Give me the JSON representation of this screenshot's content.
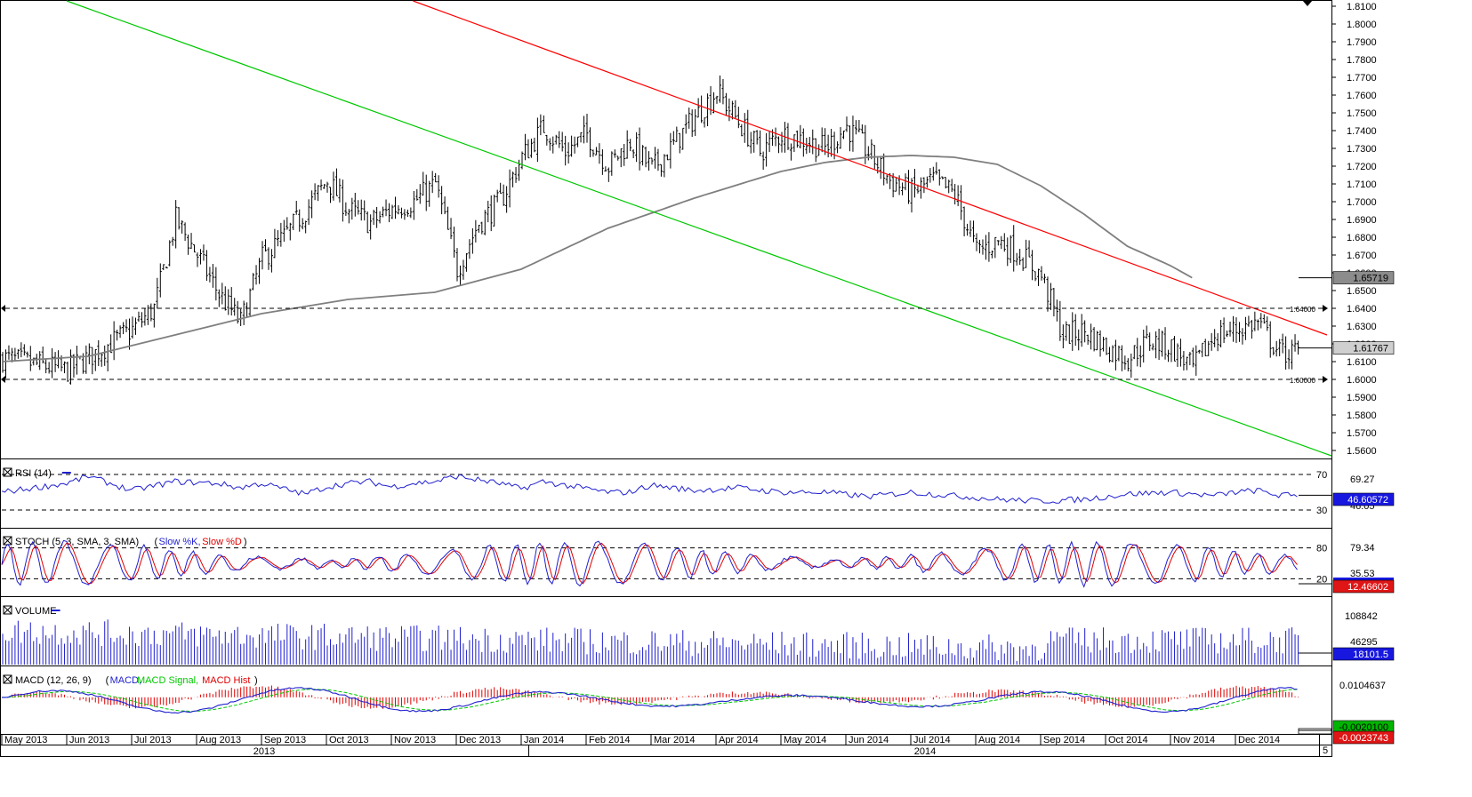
{
  "colors": {
    "price_bar": "#000000",
    "moving_average": "#7f7f7f",
    "resistance_line": "#ff0000",
    "support_line": "#00c800",
    "rsi": "#1f1fcf",
    "stoch_k": "#1f1fcf",
    "stoch_d": "#e00000",
    "volume": "#1f1fcf",
    "macd": "#1f1fcf",
    "macd_signal": "#00c800",
    "macd_hist": "#e00000",
    "flag_blue": "#1717e0",
    "flag_red": "#e01515",
    "flag_green": "#00b400",
    "flag_gray": "#cfcfcf"
  },
  "chart_data": [
    {
      "type": "ohlc",
      "panel": "price",
      "ylim": [
        1.556,
        1.813
      ],
      "y_ticks": [
        "1.8100",
        "1.8000",
        "1.7900",
        "1.7800",
        "1.7700",
        "1.7600",
        "1.7500",
        "1.7400",
        "1.7300",
        "1.7200",
        "1.7100",
        "1.7000",
        "1.6900",
        "1.6800",
        "1.6700",
        "1.6600",
        "1.6500",
        "1.6400",
        "1.6300",
        "1.6200",
        "1.6100",
        "1.6000",
        "1.5900",
        "1.5800",
        "1.5700",
        "1.5600"
      ],
      "months": [
        "May 2013",
        "Jun 2013",
        "Jul 2013",
        "Aug 2013",
        "Sep 2013",
        "Oct 2013",
        "Nov 2013",
        "Dec 2013",
        "Jan 2014",
        "Feb 2014",
        "Mar 2014",
        "Apr 2014",
        "May 2014",
        "Jun 2014",
        "Jul 2014",
        "Aug 2014",
        "Sep 2014",
        "Oct 2014",
        "Nov 2014",
        "Dec 2014"
      ],
      "years": [
        "2013",
        "2014"
      ],
      "last_marker": "5",
      "close_anchors": [
        [
          0,
          1.612
        ],
        [
          3,
          1.605
        ],
        [
          6,
          1.628
        ],
        [
          7,
          1.64
        ],
        [
          8,
          1.69
        ],
        [
          9,
          1.67
        ],
        [
          10,
          1.648
        ],
        [
          11,
          1.632
        ],
        [
          12,
          1.668
        ],
        [
          13,
          1.68
        ],
        [
          14,
          1.695
        ],
        [
          15,
          1.712
        ],
        [
          16,
          1.695
        ],
        [
          17,
          1.688
        ],
        [
          18,
          1.696
        ],
        [
          19,
          1.7
        ],
        [
          20,
          1.71
        ],
        [
          21,
          1.662
        ],
        [
          22,
          1.688
        ],
        [
          23,
          1.7
        ],
        [
          24,
          1.725
        ],
        [
          25,
          1.742
        ],
        [
          26,
          1.728
        ],
        [
          27,
          1.738
        ],
        [
          28,
          1.72
        ],
        [
          29,
          1.734
        ],
        [
          30,
          1.718
        ],
        [
          31,
          1.732
        ],
        [
          32,
          1.748
        ],
        [
          33,
          1.762
        ],
        [
          34,
          1.745
        ],
        [
          35,
          1.728
        ],
        [
          36,
          1.738
        ],
        [
          37,
          1.735
        ],
        [
          38,
          1.73
        ],
        [
          39,
          1.742
        ],
        [
          40,
          1.728
        ],
        [
          41,
          1.712
        ],
        [
          42,
          1.705
        ],
        [
          43,
          1.712
        ],
        [
          44,
          1.704
        ],
        [
          45,
          1.672
        ],
        [
          46,
          1.678
        ],
        [
          47,
          1.671
        ],
        [
          48,
          1.658
        ],
        [
          49,
          1.625
        ],
        [
          50,
          1.627
        ],
        [
          51,
          1.618
        ],
        [
          52,
          1.612
        ],
        [
          53,
          1.622
        ],
        [
          54,
          1.618
        ],
        [
          55,
          1.606
        ],
        [
          56,
          1.625
        ],
        [
          57,
          1.628
        ],
        [
          58,
          1.632
        ],
        [
          59,
          1.615
        ]
      ],
      "moving_average_anchors": [
        [
          0,
          1.61
        ],
        [
          4,
          1.613
        ],
        [
          8,
          1.625
        ],
        [
          12,
          1.637
        ],
        [
          16,
          1.645
        ],
        [
          20,
          1.649
        ],
        [
          24,
          1.662
        ],
        [
          28,
          1.685
        ],
        [
          32,
          1.702
        ],
        [
          36,
          1.717
        ],
        [
          38,
          1.722
        ],
        [
          40,
          1.725
        ],
        [
          42,
          1.726
        ],
        [
          44,
          1.725
        ],
        [
          46,
          1.721
        ],
        [
          48,
          1.709
        ],
        [
          50,
          1.693
        ],
        [
          52,
          1.675
        ],
        [
          54,
          1.664
        ],
        [
          55,
          1.6572
        ]
      ],
      "moving_average_last": "1.65719",
      "last_price": "1.61767",
      "resistance_line": {
        "from": [
          19,
          1.813
        ],
        "to": [
          60,
          1.629
        ]
      },
      "support_line": {
        "from": [
          3,
          1.813
        ],
        "to": [
          60,
          1.557
        ]
      },
      "horizontal_levels": [
        {
          "value": 1.64,
          "label": "1.64000"
        },
        {
          "value": 1.6,
          "label": "1.60000"
        }
      ]
    },
    {
      "type": "line",
      "panel": "RSI",
      "title": "RSI (14)",
      "ylim": [
        10,
        86
      ],
      "levels": [
        70,
        30
      ],
      "level_labels": [
        "70",
        "30"
      ],
      "tick_labels": [
        "69.27",
        "46.05"
      ],
      "anchors": [
        [
          0,
          50
        ],
        [
          3,
          60
        ],
        [
          4,
          68
        ],
        [
          5,
          60
        ],
        [
          6,
          52
        ],
        [
          8,
          62
        ],
        [
          10,
          60
        ],
        [
          11,
          55
        ],
        [
          12,
          60
        ],
        [
          14,
          48
        ],
        [
          15,
          56
        ],
        [
          16,
          60
        ],
        [
          17,
          62
        ],
        [
          18,
          56
        ],
        [
          19,
          60
        ],
        [
          20,
          62
        ],
        [
          21,
          68
        ],
        [
          22,
          64
        ],
        [
          23,
          60
        ],
        [
          24,
          54
        ],
        [
          25,
          62
        ],
        [
          26,
          58
        ],
        [
          27,
          54
        ],
        [
          28,
          50
        ],
        [
          29,
          50
        ],
        [
          30,
          58
        ],
        [
          32,
          52
        ],
        [
          34,
          55
        ],
        [
          36,
          50
        ],
        [
          38,
          50
        ],
        [
          40,
          45
        ],
        [
          42,
          50
        ],
        [
          44,
          46
        ],
        [
          46,
          42
        ],
        [
          48,
          40
        ],
        [
          50,
          42
        ],
        [
          52,
          48
        ],
        [
          54,
          50
        ],
        [
          55,
          48
        ],
        [
          56,
          46
        ],
        [
          57,
          50
        ],
        [
          58,
          52
        ],
        [
          59,
          46.6
        ]
      ],
      "last_value": "46.60572"
    },
    {
      "type": "line",
      "panel": "STOCH",
      "title": "STOCH (5, 3, SMA, 3, SMA)",
      "legend": [
        "Slow %K",
        "Slow %D"
      ],
      "ylim": [
        0,
        100
      ],
      "levels": [
        80,
        20
      ],
      "level_labels": [
        "80",
        "20"
      ],
      "tick_labels": [
        "79.34",
        "35.53"
      ],
      "last_value": "12.46602"
    },
    {
      "type": "bar",
      "panel": "VOLUME",
      "title": "VOLUME",
      "ylim": [
        0,
        150000
      ],
      "tick_labels": [
        "108842",
        "46295"
      ],
      "last_value": "18101.5"
    },
    {
      "type": "line",
      "panel": "MACD",
      "title": "MACD (12, 26, 9)",
      "legend": [
        "MACD",
        "MACD Signal",
        "MACD Hist"
      ],
      "ylim": [
        -0.022,
        0.016
      ],
      "tick_labels": [
        "0.0104637"
      ],
      "last_values": {
        "macd": "-0.0023743",
        "signal": "-0.0020100"
      }
    }
  ]
}
